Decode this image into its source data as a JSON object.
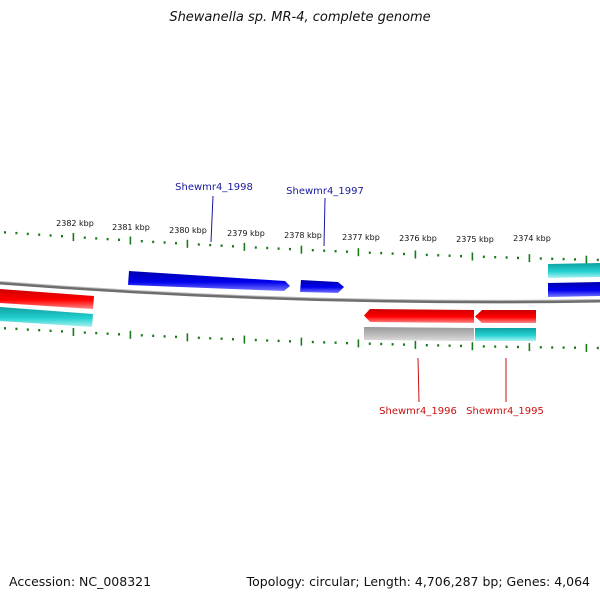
{
  "title": "Shewanella sp. MR-4, complete genome",
  "footer": {
    "accession": "Accession: NC_008321",
    "summary": "Topology: circular; Length: 4,706,287 bp; Genes: 4,064"
  },
  "colors": {
    "forward_gene": "#0000dd",
    "reverse_gene": "#ee0000",
    "cds": "#19c6c6",
    "rna_gray": "#b4b4b4",
    "backbone": "#777777",
    "ticks": "#1a7a1a",
    "forward_label": "#1a1aa0",
    "reverse_label": "#cc1111"
  },
  "scale_ticks": [
    {
      "label": "2382 kbp"
    },
    {
      "label": "2381 kbp"
    },
    {
      "label": "2380 kbp"
    },
    {
      "label": "2379 kbp"
    },
    {
      "label": "2378 kbp"
    },
    {
      "label": "2377 kbp"
    },
    {
      "label": "2376 kbp"
    },
    {
      "label": "2375 kbp"
    },
    {
      "label": "2374 kbp"
    }
  ],
  "gene_labels": [
    {
      "name": "Shewmr4_1998",
      "strand": "forward"
    },
    {
      "name": "Shewmr4_1997",
      "strand": "forward"
    },
    {
      "name": "Shewmr4_1996",
      "strand": "reverse"
    },
    {
      "name": "Shewmr4_1995",
      "strand": "reverse"
    }
  ]
}
